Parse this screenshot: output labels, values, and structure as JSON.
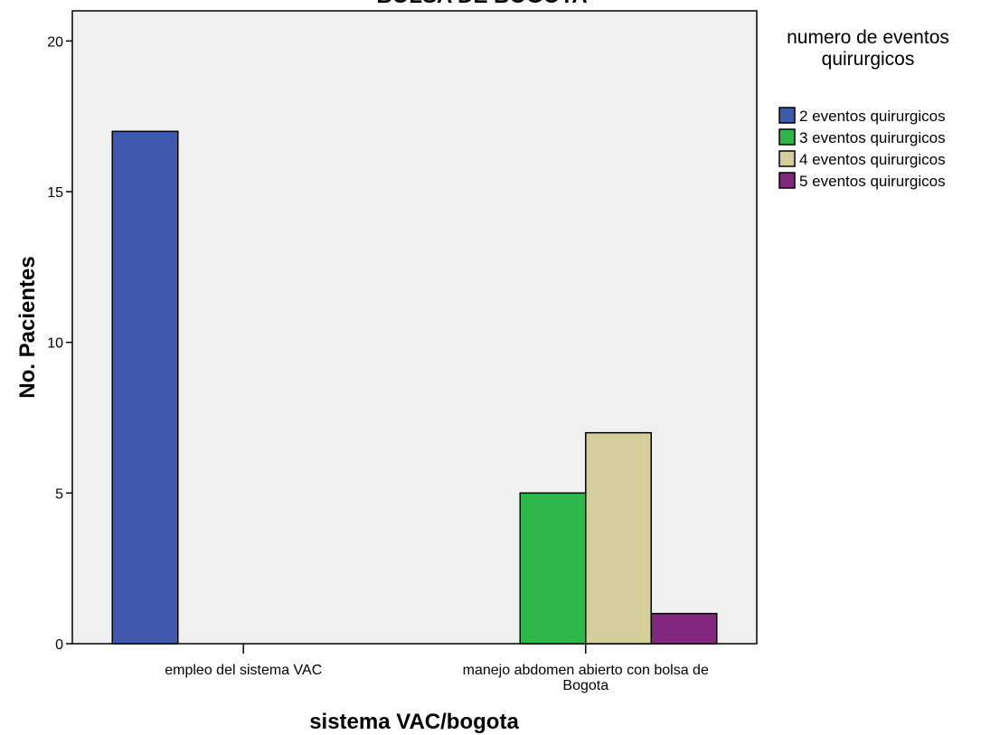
{
  "chart_data": {
    "type": "bar",
    "title": "BOLSA DE BOGOTA",
    "xlabel": "sistema VAC/bogota",
    "ylabel": "No. Pacientes",
    "ylim": [
      0,
      21
    ],
    "yticks": [
      0,
      5,
      10,
      15,
      20
    ],
    "categories": [
      [
        "empleo del sistema VAC"
      ],
      [
        "manejo abdomen abierto con bolsa de",
        "Bogota"
      ]
    ],
    "legend_title": [
      "numero de eventos",
      "quirurgicos"
    ],
    "legend_position": "right",
    "grid": false,
    "series": [
      {
        "name": "2 eventos quirurgicos",
        "color": "#3f59ae",
        "values": [
          17,
          null
        ]
      },
      {
        "name": "3 eventos quirurgicos",
        "color": "#2fb84a",
        "values": [
          null,
          5
        ]
      },
      {
        "name": "4 eventos quirurgicos",
        "color": "#d3ce9c",
        "values": [
          null,
          7
        ]
      },
      {
        "name": "5 eventos quirurgicos",
        "color": "#81287e",
        "values": [
          null,
          1
        ]
      }
    ],
    "plot_background": "#f0f0f0"
  }
}
